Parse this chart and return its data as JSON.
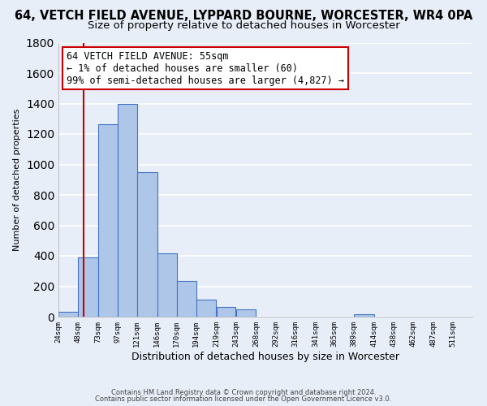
{
  "title1": "64, VETCH FIELD AVENUE, LYPPARD BOURNE, WORCESTER, WR4 0PA",
  "title2": "Size of property relative to detached houses in Worcester",
  "xlabel": "Distribution of detached houses by size in Worcester",
  "ylabel": "Number of detached properties",
  "bar_left_edges": [
    24,
    48,
    73,
    97,
    121,
    146,
    170,
    194,
    219,
    243,
    268,
    292,
    316,
    341,
    365,
    389,
    414,
    438,
    462,
    487
  ],
  "bar_heights": [
    30,
    390,
    1265,
    1395,
    950,
    415,
    235,
    110,
    65,
    50,
    0,
    0,
    0,
    0,
    0,
    15,
    0,
    0,
    0,
    0
  ],
  "bar_widths": [
    24,
    25,
    24,
    24,
    25,
    24,
    24,
    25,
    24,
    25,
    24,
    24,
    25,
    24,
    24,
    25,
    24,
    24,
    25,
    24
  ],
  "tick_labels": [
    "24sqm",
    "48sqm",
    "73sqm",
    "97sqm",
    "121sqm",
    "146sqm",
    "170sqm",
    "194sqm",
    "219sqm",
    "243sqm",
    "268sqm",
    "292sqm",
    "316sqm",
    "341sqm",
    "365sqm",
    "389sqm",
    "414sqm",
    "438sqm",
    "462sqm",
    "487sqm",
    "511sqm"
  ],
  "tick_positions": [
    24,
    48,
    73,
    97,
    121,
    146,
    170,
    194,
    219,
    243,
    268,
    292,
    316,
    341,
    365,
    389,
    414,
    438,
    462,
    487,
    511
  ],
  "bar_color": "#aec6e8",
  "bar_edge_color": "#4472c4",
  "vline_x": 55,
  "vline_color": "#cc0000",
  "annotation_text_line1": "64 VETCH FIELD AVENUE: 55sqm",
  "annotation_text_line2": "← 1% of detached houses are smaller (60)",
  "annotation_text_line3": "99% of semi-detached houses are larger (4,827) →",
  "ylim": [
    0,
    1800
  ],
  "xlim": [
    24,
    535
  ],
  "footer1": "Contains HM Land Registry data © Crown copyright and database right 2024.",
  "footer2": "Contains public sector information licensed under the Open Government Licence v3.0.",
  "bg_color": "#e8eef8",
  "grid_color": "#ffffff",
  "title1_fontsize": 10.5,
  "title2_fontsize": 9.5,
  "annotation_fontsize": 8.5
}
